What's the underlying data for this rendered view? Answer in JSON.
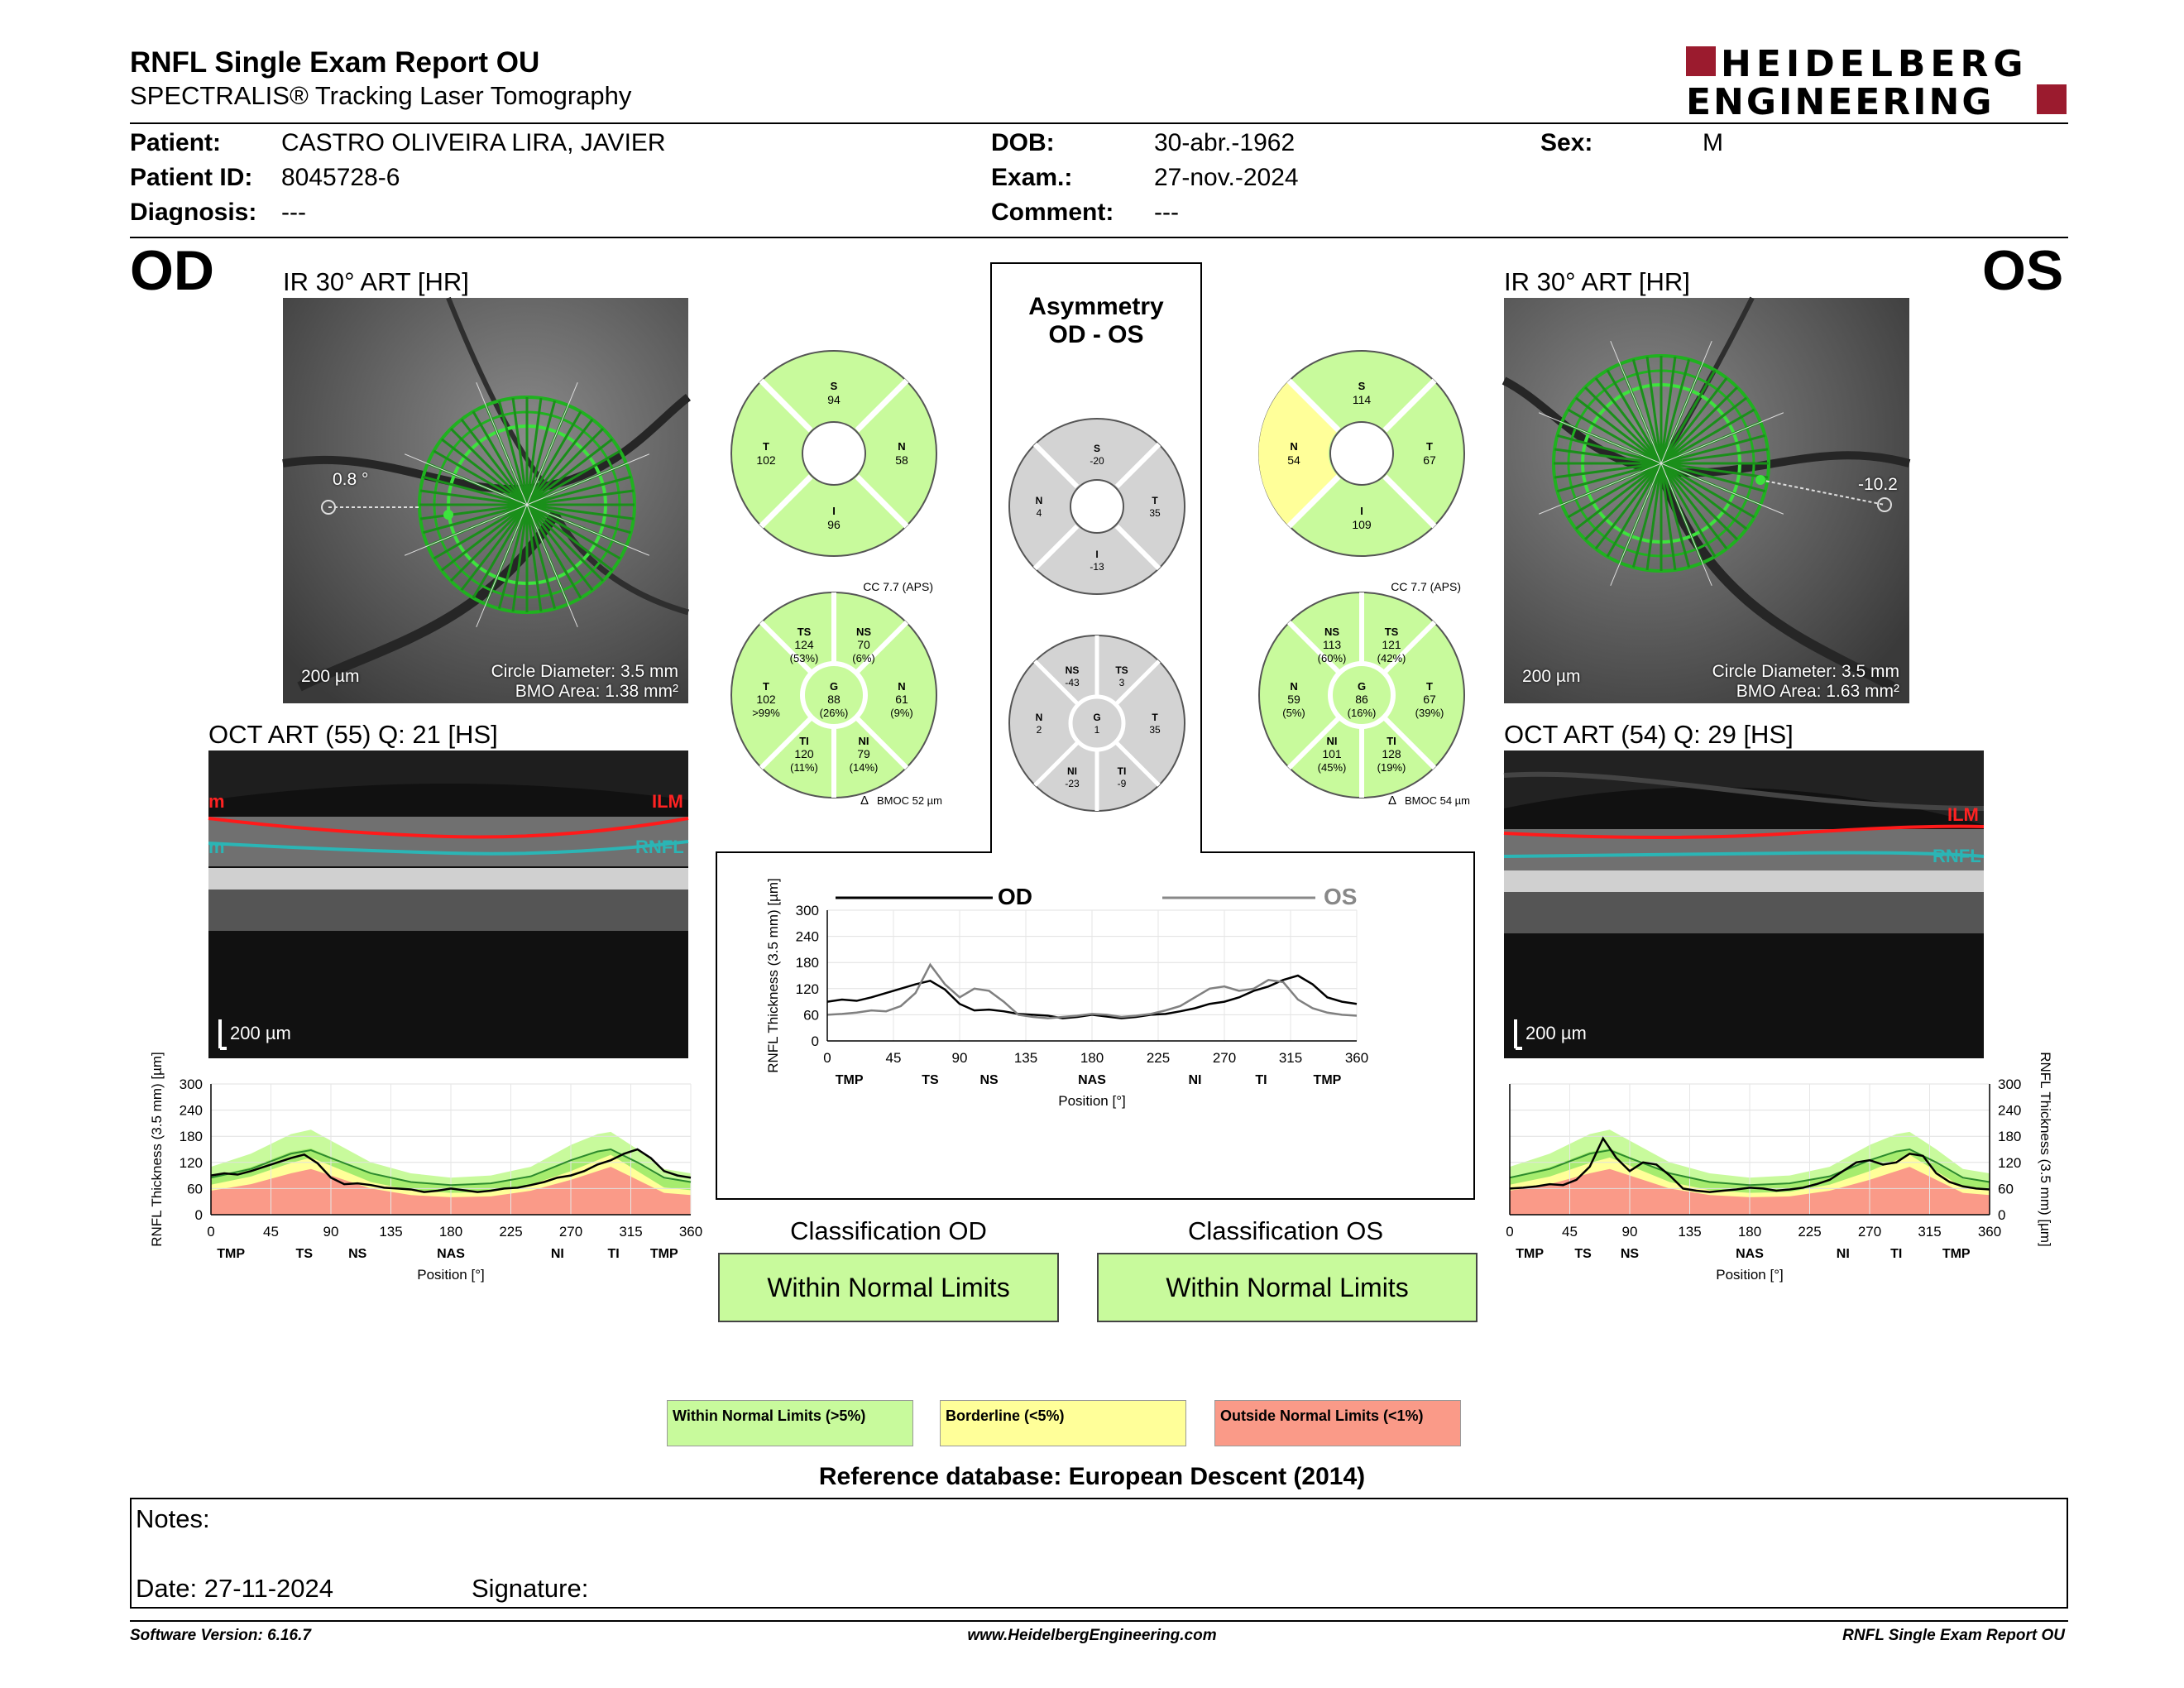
{
  "header": {
    "title": "RNFL Single Exam Report OU",
    "subtitle": "SPECTRALIS® Tracking Laser Tomography",
    "logo_line1": "HEIDELBERG",
    "logo_line2": "ENGINEERING"
  },
  "patient": {
    "patient_label": "Patient:",
    "patient_value": "CASTRO OLIVEIRA LIRA, JAVIER",
    "id_label": "Patient ID:",
    "id_value": "8045728-6",
    "diagnosis_label": "Diagnosis:",
    "diagnosis_value": "---",
    "dob_label": "DOB:",
    "dob_value": "30-abr.-1962",
    "exam_label": "Exam.:",
    "exam_value": "27-nov.-2024",
    "comment_label": "Comment:",
    "comment_value": "---",
    "sex_label": "Sex:",
    "sex_value": "M"
  },
  "od": {
    "eye": "OD",
    "ir_caption": "IR 30° ART [HR]",
    "angle": "0.8 °",
    "scale": "200 µm",
    "circle_diameter": "Circle Diameter: 3.5 mm",
    "bmo_area": "BMO Area: 1.38 mm²",
    "oct_caption": "OCT ART (55) Q: 21 [HS]",
    "ilm": "ILM",
    "rnfl": "RNFL",
    "oct_scale": "200 µm"
  },
  "os": {
    "eye": "OS",
    "ir_caption": "IR 30° ART [HR]",
    "angle": "-10.2",
    "scale": "200 µm",
    "circle_diameter": "Circle Diameter: 3.5 mm",
    "bmo_area": "BMO Area: 1.63 mm²",
    "oct_caption": "OCT ART (54) Q: 29 [HS]",
    "ilm": "ILM",
    "rnfl": "RNFL",
    "oct_scale": "200 µm"
  },
  "sectors": {
    "od_quadrants": {
      "S": "94",
      "T": "102",
      "N": "58",
      "I": "96"
    },
    "os_quadrants": {
      "S": "114",
      "N": "54",
      "T": "67",
      "I": "109"
    },
    "asym_quadrants": {
      "S": "-20",
      "N": "4",
      "T": "35",
      "I": "-13"
    },
    "od_cc": "CC 7.7 (APS)",
    "os_cc": "CC 7.7 (APS)",
    "od_bmoc": "BMOC 52 µm",
    "os_bmoc": "BMOC 54 µm",
    "od_6": {
      "TS": "124",
      "TS_p": "(53%)",
      "NS": "70",
      "NS_p": "(6%)",
      "T": "102",
      "T_p": ">99%",
      "G": "88",
      "G_p": "(26%)",
      "N": "61",
      "N_p": "(9%)",
      "TI": "120",
      "TI_p": "(11%)",
      "NI": "79",
      "NI_p": "(14%)"
    },
    "os_6": {
      "NS": "113",
      "NS_p": "(60%)",
      "TS": "121",
      "TS_p": "(42%)",
      "N": "59",
      "N_p": "(5%)",
      "G": "86",
      "G_p": "(16%)",
      "T": "67",
      "T_p": "(39%)",
      "NI": "101",
      "NI_p": "(45%)",
      "TI": "128",
      "TI_p": "(19%)"
    },
    "asym_6": {
      "NS": "-43",
      "TS": "3",
      "N": "2",
      "G": "1",
      "T": "35",
      "NI": "-23",
      "TI": "-9"
    }
  },
  "asymmetry": {
    "title1": "Asymmetry",
    "title2": "OD - OS"
  },
  "center_chart": {
    "od_label": "OD",
    "os_label": "OS"
  },
  "classification": {
    "od_title": "Classification OD",
    "od_value": "Within Normal Limits",
    "os_title": "Classification OS",
    "os_value": "Within Normal Limits"
  },
  "legend": {
    "normal": "Within Normal Limits (>5%)",
    "borderline": "Borderline (<5%)",
    "outside": "Outside Normal Limits (<1%)",
    "normal_color": "#c8fa9c",
    "borderline_color": "#ffff99",
    "outside_color": "#fa9a88"
  },
  "reference": "Reference database: European Descent (2014)",
  "notes": {
    "label": "Notes:",
    "date": "Date: 27-11-2024",
    "signature": "Signature:"
  },
  "footer": {
    "version": "Software Version: 6.16.7",
    "url": "www.HeidelbergEngineering.com",
    "report": "RNFL Single Exam Report OU"
  },
  "chart_data": [
    {
      "type": "line",
      "title": "",
      "ylabel": "RNFL Thickness (3.5 mm) [µm]",
      "xlabel": "Position [°]",
      "xlim": [
        0,
        360
      ],
      "ylim": [
        0,
        300
      ],
      "xticks": [
        0,
        45,
        90,
        135,
        180,
        225,
        270,
        315,
        360
      ],
      "yticks": [
        0,
        60,
        120,
        180,
        240,
        300
      ],
      "sector_labels": [
        {
          "x": 15,
          "label": "TMP"
        },
        {
          "x": 70,
          "label": "TS"
        },
        {
          "x": 110,
          "label": "NS"
        },
        {
          "x": 180,
          "label": "NAS"
        },
        {
          "x": 250,
          "label": "NI"
        },
        {
          "x": 295,
          "label": "TI"
        },
        {
          "x": 340,
          "label": "TMP"
        }
      ],
      "series": [
        {
          "name": "OD",
          "color": "#000000",
          "x": [
            0,
            10,
            20,
            30,
            40,
            50,
            60,
            70,
            80,
            90,
            100,
            110,
            120,
            130,
            140,
            150,
            160,
            170,
            180,
            190,
            200,
            210,
            220,
            230,
            240,
            250,
            260,
            270,
            280,
            290,
            300,
            310,
            320,
            330,
            340,
            350,
            360
          ],
          "y": [
            90,
            95,
            92,
            100,
            110,
            120,
            130,
            138,
            118,
            85,
            70,
            72,
            68,
            62,
            60,
            58,
            52,
            55,
            60,
            56,
            52,
            55,
            60,
            62,
            68,
            75,
            85,
            90,
            100,
            115,
            125,
            140,
            150,
            130,
            100,
            90,
            85
          ]
        },
        {
          "name": "OS",
          "color": "#808080",
          "x": [
            0,
            10,
            20,
            30,
            40,
            50,
            60,
            70,
            80,
            90,
            100,
            110,
            120,
            130,
            140,
            150,
            160,
            170,
            180,
            190,
            200,
            210,
            220,
            230,
            240,
            250,
            260,
            270,
            280,
            290,
            300,
            310,
            320,
            330,
            340,
            350,
            360
          ],
          "y": [
            60,
            62,
            65,
            70,
            68,
            80,
            110,
            175,
            130,
            100,
            120,
            115,
            90,
            60,
            55,
            52,
            55,
            58,
            62,
            60,
            55,
            58,
            62,
            70,
            80,
            100,
            120,
            125,
            115,
            120,
            140,
            135,
            95,
            75,
            65,
            60,
            58
          ]
        }
      ]
    },
    {
      "type": "line",
      "title": "",
      "ylabel": "RNFL Thickness (3.5 mm) [µm]",
      "xlabel": "Position [°]",
      "xlim": [
        0,
        360
      ],
      "ylim": [
        0,
        300
      ],
      "xticks": [
        0,
        45,
        90,
        135,
        180,
        225,
        270,
        315,
        360
      ],
      "yticks": [
        0,
        60,
        120,
        180,
        240,
        300
      ],
      "sector_labels": [
        {
          "x": 15,
          "label": "TMP"
        },
        {
          "x": 70,
          "label": "TS"
        },
        {
          "x": 110,
          "label": "NS"
        },
        {
          "x": 260,
          "label": "NI"
        },
        {
          "x": 302,
          "label": "TI"
        },
        {
          "x": 340,
          "label": "TMP"
        },
        {
          "x": 180,
          "label": "NAS"
        }
      ],
      "series": [
        {
          "name": "OD",
          "color": "#000000",
          "x": [
            0,
            10,
            20,
            30,
            40,
            50,
            60,
            70,
            80,
            90,
            100,
            110,
            120,
            130,
            140,
            150,
            160,
            170,
            180,
            190,
            200,
            210,
            220,
            230,
            240,
            250,
            260,
            270,
            280,
            290,
            300,
            310,
            320,
            330,
            340,
            350,
            360
          ],
          "y": [
            90,
            95,
            92,
            100,
            110,
            120,
            130,
            138,
            118,
            85,
            70,
            72,
            68,
            62,
            60,
            58,
            52,
            55,
            60,
            56,
            52,
            55,
            60,
            62,
            68,
            75,
            85,
            90,
            100,
            115,
            125,
            140,
            150,
            130,
            100,
            90,
            85
          ]
        },
        {
          "name": "band_outside_upper",
          "x": [
            0,
            30,
            60,
            75,
            90,
            120,
            150,
            180,
            210,
            240,
            270,
            290,
            300,
            320,
            340,
            360
          ],
          "y": [
            55,
            70,
            95,
            105,
            90,
            60,
            45,
            40,
            42,
            55,
            80,
            100,
            110,
            80,
            50,
            45
          ]
        },
        {
          "name": "band_normal_upper",
          "x": [
            0,
            30,
            60,
            75,
            90,
            120,
            150,
            180,
            210,
            240,
            270,
            290,
            300,
            320,
            340,
            360
          ],
          "y": [
            110,
            140,
            185,
            195,
            170,
            120,
            95,
            85,
            90,
            110,
            160,
            185,
            190,
            150,
            105,
            95
          ]
        },
        {
          "name": "mean",
          "x": [
            0,
            30,
            60,
            75,
            90,
            120,
            150,
            180,
            210,
            240,
            270,
            290,
            300,
            320,
            340,
            360
          ],
          "y": [
            85,
            105,
            140,
            148,
            130,
            95,
            75,
            68,
            72,
            88,
            125,
            145,
            150,
            120,
            85,
            75
          ]
        }
      ]
    },
    {
      "type": "line",
      "title": "",
      "ylabel": "RNFL Thickness (3.5 mm) [µm]",
      "xlabel": "Position [°]",
      "xlim": [
        0,
        360
      ],
      "ylim": [
        0,
        300
      ],
      "xticks": [
        0,
        45,
        90,
        135,
        180,
        225,
        270,
        315,
        360
      ],
      "yticks": [
        0,
        60,
        120,
        180,
        240,
        300
      ],
      "sector_labels": [
        {
          "x": 15,
          "label": "TMP"
        },
        {
          "x": 55,
          "label": "TS"
        },
        {
          "x": 90,
          "label": "NS"
        },
        {
          "x": 180,
          "label": "NAS"
        },
        {
          "x": 250,
          "label": "NI"
        },
        {
          "x": 290,
          "label": "TI"
        },
        {
          "x": 335,
          "label": "TMP"
        }
      ],
      "series": [
        {
          "name": "OS",
          "color": "#000000",
          "x": [
            0,
            10,
            20,
            30,
            40,
            50,
            60,
            70,
            80,
            90,
            100,
            110,
            120,
            130,
            140,
            150,
            160,
            170,
            180,
            190,
            200,
            210,
            220,
            230,
            240,
            250,
            260,
            270,
            280,
            290,
            300,
            310,
            320,
            330,
            340,
            350,
            360
          ],
          "y": [
            60,
            62,
            65,
            70,
            68,
            80,
            110,
            175,
            130,
            100,
            120,
            115,
            90,
            60,
            55,
            52,
            55,
            58,
            62,
            60,
            55,
            58,
            62,
            70,
            80,
            100,
            120,
            125,
            115,
            120,
            140,
            135,
            95,
            75,
            65,
            60,
            58
          ]
        },
        {
          "name": "band_outside_upper",
          "x": [
            0,
            30,
            60,
            75,
            90,
            120,
            150,
            180,
            210,
            240,
            270,
            290,
            300,
            320,
            340,
            360
          ],
          "y": [
            55,
            70,
            95,
            105,
            90,
            60,
            45,
            40,
            42,
            55,
            80,
            100,
            110,
            80,
            50,
            45
          ]
        },
        {
          "name": "band_normal_upper",
          "x": [
            0,
            30,
            60,
            75,
            90,
            120,
            150,
            180,
            210,
            240,
            270,
            290,
            300,
            320,
            340,
            360
          ],
          "y": [
            110,
            140,
            185,
            195,
            170,
            120,
            95,
            85,
            90,
            110,
            160,
            185,
            190,
            150,
            105,
            95
          ]
        },
        {
          "name": "mean",
          "x": [
            0,
            30,
            60,
            75,
            90,
            120,
            150,
            180,
            210,
            240,
            270,
            290,
            300,
            320,
            340,
            360
          ],
          "y": [
            85,
            105,
            140,
            148,
            130,
            95,
            75,
            68,
            72,
            88,
            125,
            145,
            150,
            120,
            85,
            75
          ]
        }
      ]
    }
  ]
}
